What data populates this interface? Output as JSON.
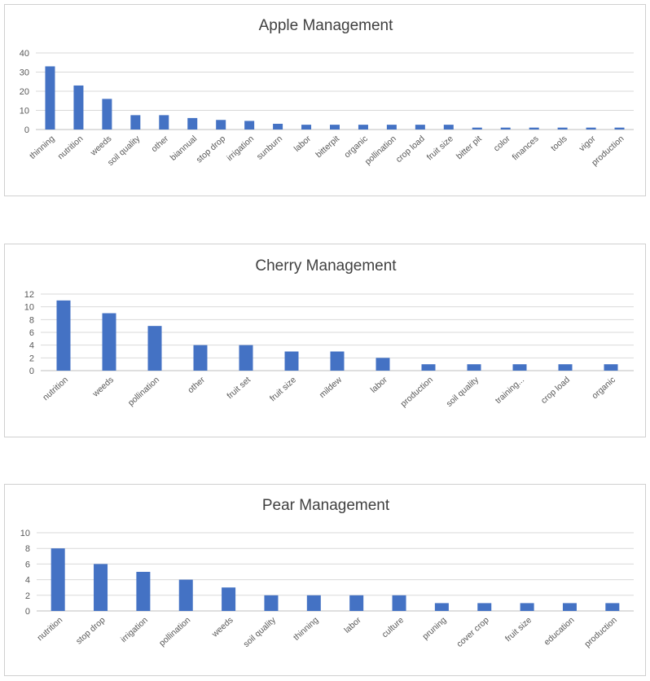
{
  "colors": {
    "bar": "#4472c4",
    "grid": "#d9d9d9",
    "axis": "#bfbfbf",
    "text": "#595959"
  },
  "chart_data": [
    {
      "type": "bar",
      "title": "Apple Management",
      "categories": [
        "thinning",
        "nutrition",
        "weeds",
        "soil quality",
        "other",
        "biannual",
        "stop drop",
        "irrigation",
        "sunburn",
        "labor",
        "bitterpit",
        "organic",
        "pollination",
        "crop load",
        "fruit size",
        "bitter pit",
        "color",
        "finances",
        "tools",
        "vigor",
        "production"
      ],
      "values": [
        33,
        23,
        16,
        7.5,
        7.5,
        6,
        5,
        4.5,
        3,
        2.5,
        2.5,
        2.5,
        2.5,
        2.5,
        2.5,
        1,
        1,
        1,
        1,
        1,
        1
      ],
      "ylim": [
        0,
        40
      ],
      "yticks": [
        0,
        10,
        20,
        30,
        40
      ],
      "grid": true,
      "legend": "none"
    },
    {
      "type": "bar",
      "title": "Cherry Management",
      "categories": [
        "nutrition",
        "weeds",
        "pollination",
        "other",
        "fruit set",
        "fruit size",
        "mildew",
        "labor",
        "production",
        "soil quality",
        "training...",
        "crop load",
        "organic"
      ],
      "values": [
        11,
        9,
        7,
        4,
        4,
        3,
        3,
        2,
        1,
        1,
        1,
        1,
        1
      ],
      "ylim": [
        0,
        12
      ],
      "yticks": [
        0,
        2,
        4,
        6,
        8,
        10,
        12
      ],
      "grid": true,
      "legend": "none"
    },
    {
      "type": "bar",
      "title": "Pear Management",
      "categories": [
        "nutrition",
        "stop drop",
        "irrigation",
        "pollination",
        "weeds",
        "soil quality",
        "thinning",
        "labor",
        "culture",
        "pruning",
        "cover crop",
        "fruit size",
        "education",
        "production"
      ],
      "values": [
        8,
        6,
        5,
        4,
        3,
        2,
        2,
        2,
        2,
        1,
        1,
        1,
        1,
        1
      ],
      "ylim": [
        0,
        10
      ],
      "yticks": [
        0,
        2,
        4,
        6,
        8,
        10
      ],
      "grid": true,
      "legend": "none"
    }
  ]
}
